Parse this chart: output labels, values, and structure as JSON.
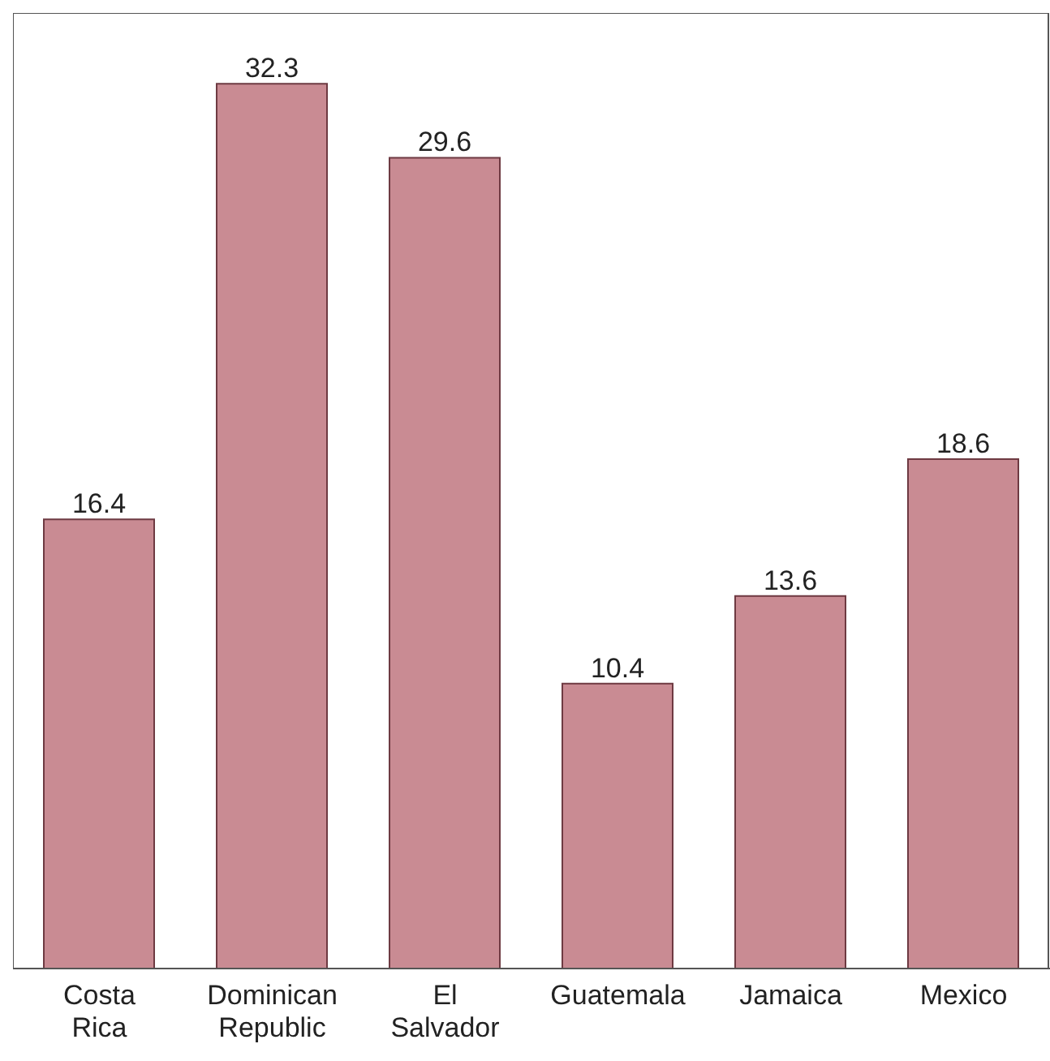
{
  "chart_data": {
    "type": "bar",
    "categories": [
      "Costa Rica",
      "Dominican Republic",
      "El Salvador",
      "Guatemala",
      "Jamaica",
      "Mexico"
    ],
    "values": [
      16.4,
      32.3,
      29.6,
      10.4,
      13.6,
      18.6
    ],
    "color": "#c98b93",
    "data_labels": true
  }
}
